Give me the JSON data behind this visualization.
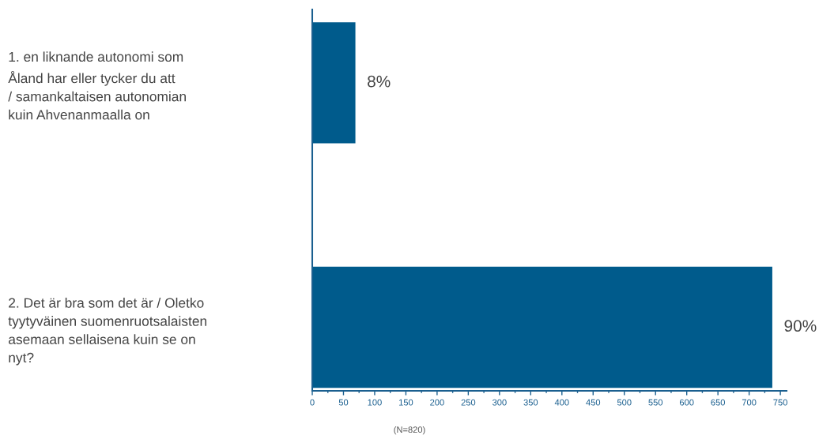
{
  "chart_data": {
    "type": "bar",
    "orientation": "horizontal",
    "categories": [
      "1. en liknande autonomi som\nÅland har eller tycker du att\n/ samankaltaisen autonomian\nkuin Ahvenanmaalla on",
      "2. Det är bra som det är / Oletko\ntyytyväinen suomenruotsalaisten\nasemaan sellaisena kuin se on\nnyt?"
    ],
    "values": [
      70,
      738
    ],
    "color": "#005b8c",
    "xlim": [
      0,
      760
    ],
    "xticks": [
      0,
      50,
      100,
      150,
      200,
      250,
      300,
      350,
      400,
      450,
      500,
      550,
      600,
      650,
      700,
      750
    ],
    "annotations": [
      {
        "text": "8%",
        "x": 70,
        "y": "1. en liknande autonomi som\nÅland har eller tycker du att\n/ samankaltaisen autonomian\nkuin Ahvenanmaalla on"
      },
      {
        "text": "90%",
        "x": 738,
        "y": "2. Det är bra som det är / Oletko\ntyytyväinen suomenruotsalaisten\nasemaan sellaisena kuin se on\nnyt?"
      },
      "(N=820)"
    ],
    "grid": false
  }
}
